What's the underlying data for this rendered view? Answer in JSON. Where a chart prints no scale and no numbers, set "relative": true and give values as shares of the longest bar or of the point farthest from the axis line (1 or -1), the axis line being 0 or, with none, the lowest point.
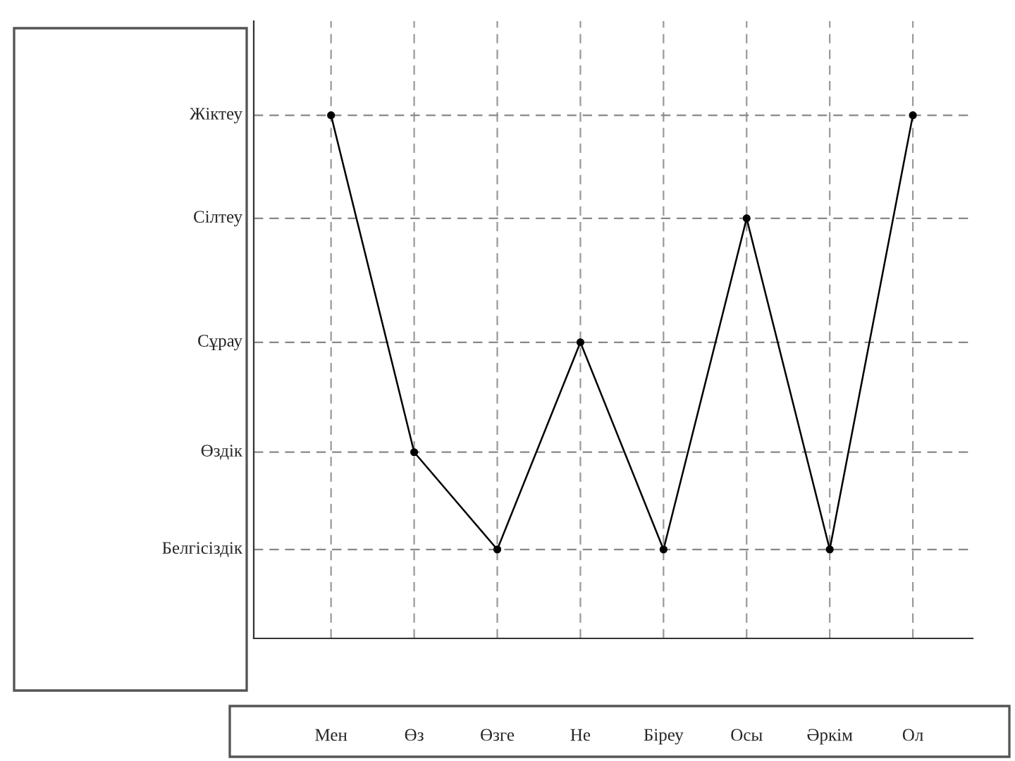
{
  "chart_data": {
    "type": "line",
    "relative": true,
    "categories": [
      "Мен",
      "Өз",
      "Өзге",
      "Не",
      "Біреу",
      "Осы",
      "Әркім",
      "Ол"
    ],
    "series": [
      {
        "color": "#000000",
        "values": [
          1,
          0.356,
          0.17,
          0.566,
          0.17,
          0.803,
          0.17,
          1
        ]
      }
    ],
    "marker": "circle",
    "line_style": "solid",
    "grid": "x",
    "ref_lines": [
      {
        "axis": "y",
        "value": 1,
        "label": "Жіктеу",
        "line_style": "dashed",
        "color": "#888888"
      },
      {
        "axis": "y",
        "value": 0.803,
        "label": "Сілтеу",
        "line_style": "dashed",
        "color": "#888888"
      },
      {
        "axis": "y",
        "value": 0.566,
        "label": "Сұрау",
        "line_style": "dashed",
        "color": "#888888"
      },
      {
        "axis": "y",
        "value": 0.356,
        "label": "Өздік",
        "line_style": "dashed",
        "color": "#888888"
      },
      {
        "axis": "y",
        "value": 0.17,
        "label": "Белгісіздік",
        "line_style": "dashed",
        "color": "#888888"
      }
    ]
  }
}
